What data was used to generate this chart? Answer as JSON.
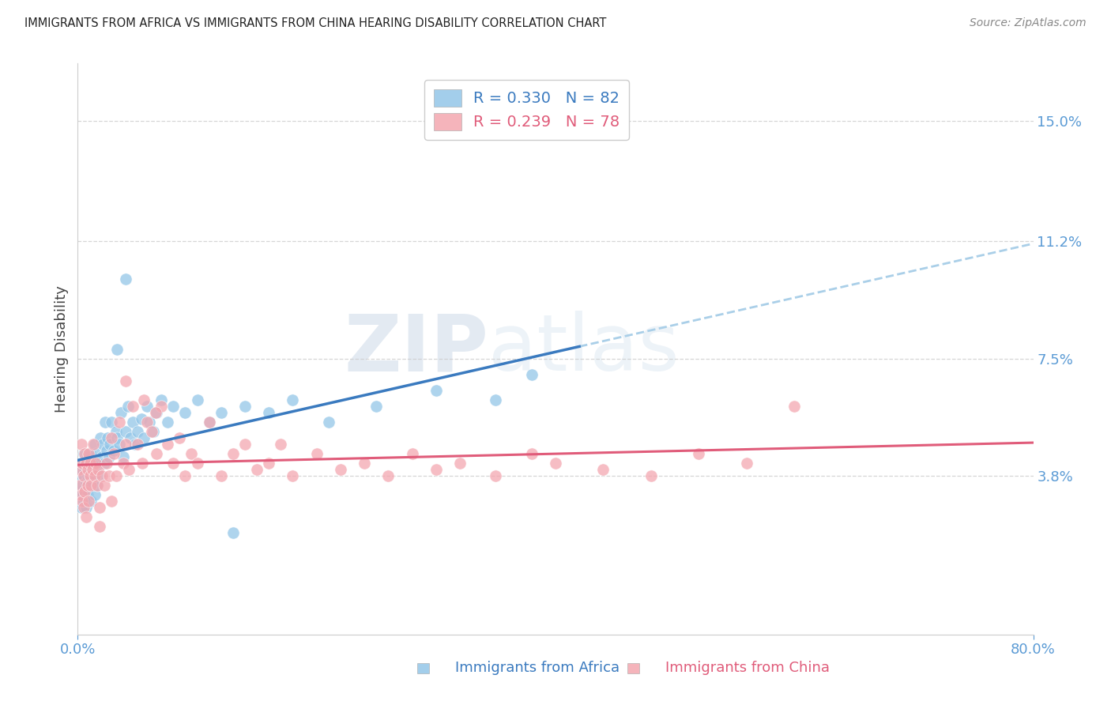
{
  "title": "IMMIGRANTS FROM AFRICA VS IMMIGRANTS FROM CHINA HEARING DISABILITY CORRELATION CHART",
  "source": "Source: ZipAtlas.com",
  "ylabel": "Hearing Disability",
  "ytick_labels": [
    "15.0%",
    "11.2%",
    "7.5%",
    "3.8%"
  ],
  "ytick_values": [
    0.15,
    0.112,
    0.075,
    0.038
  ],
  "xlim": [
    0.0,
    0.8
  ],
  "ylim": [
    -0.012,
    0.168
  ],
  "africa_color": "#93c6e8",
  "china_color": "#f4a7b0",
  "africa_line_color": "#3a7abf",
  "china_line_color": "#e05c7a",
  "africa_dash_color": "#aacfe8",
  "r_africa": 0.33,
  "n_africa": 82,
  "r_china": 0.239,
  "n_china": 78,
  "tick_label_color": "#5b9bd5",
  "background_color": "#ffffff",
  "grid_color": "#cccccc",
  "africa_scatter_x": [
    0.001,
    0.002,
    0.002,
    0.003,
    0.003,
    0.003,
    0.004,
    0.004,
    0.005,
    0.005,
    0.005,
    0.006,
    0.006,
    0.007,
    0.007,
    0.007,
    0.008,
    0.008,
    0.008,
    0.009,
    0.009,
    0.01,
    0.01,
    0.011,
    0.011,
    0.012,
    0.012,
    0.013,
    0.013,
    0.014,
    0.014,
    0.015,
    0.015,
    0.016,
    0.017,
    0.018,
    0.019,
    0.02,
    0.021,
    0.022,
    0.023,
    0.024,
    0.025,
    0.026,
    0.027,
    0.028,
    0.03,
    0.032,
    0.033,
    0.035,
    0.036,
    0.038,
    0.04,
    0.042,
    0.044,
    0.046,
    0.048,
    0.05,
    0.053,
    0.055,
    0.058,
    0.06,
    0.063,
    0.066,
    0.07,
    0.075,
    0.08,
    0.09,
    0.1,
    0.11,
    0.12,
    0.14,
    0.16,
    0.18,
    0.21,
    0.25,
    0.3,
    0.35,
    0.38,
    0.04,
    0.033,
    0.13
  ],
  "africa_scatter_y": [
    0.03,
    0.038,
    0.032,
    0.04,
    0.033,
    0.028,
    0.035,
    0.042,
    0.038,
    0.03,
    0.045,
    0.033,
    0.04,
    0.036,
    0.042,
    0.028,
    0.038,
    0.044,
    0.032,
    0.04,
    0.035,
    0.045,
    0.038,
    0.042,
    0.03,
    0.04,
    0.036,
    0.043,
    0.038,
    0.032,
    0.048,
    0.04,
    0.045,
    0.035,
    0.042,
    0.038,
    0.05,
    0.044,
    0.048,
    0.042,
    0.055,
    0.046,
    0.05,
    0.044,
    0.048,
    0.055,
    0.046,
    0.052,
    0.05,
    0.048,
    0.058,
    0.044,
    0.052,
    0.06,
    0.05,
    0.055,
    0.048,
    0.052,
    0.056,
    0.05,
    0.06,
    0.055,
    0.052,
    0.058,
    0.062,
    0.055,
    0.06,
    0.058,
    0.062,
    0.055,
    0.058,
    0.06,
    0.058,
    0.062,
    0.055,
    0.06,
    0.065,
    0.062,
    0.07,
    0.1,
    0.078,
    0.02
  ],
  "china_scatter_x": [
    0.001,
    0.002,
    0.003,
    0.003,
    0.004,
    0.004,
    0.005,
    0.005,
    0.006,
    0.006,
    0.007,
    0.007,
    0.008,
    0.008,
    0.009,
    0.009,
    0.01,
    0.01,
    0.011,
    0.012,
    0.013,
    0.014,
    0.015,
    0.016,
    0.017,
    0.018,
    0.02,
    0.022,
    0.024,
    0.026,
    0.028,
    0.03,
    0.032,
    0.035,
    0.038,
    0.04,
    0.043,
    0.046,
    0.05,
    0.054,
    0.058,
    0.062,
    0.066,
    0.07,
    0.075,
    0.08,
    0.085,
    0.09,
    0.095,
    0.1,
    0.11,
    0.12,
    0.13,
    0.14,
    0.15,
    0.16,
    0.17,
    0.18,
    0.2,
    0.22,
    0.24,
    0.26,
    0.28,
    0.3,
    0.32,
    0.35,
    0.38,
    0.4,
    0.44,
    0.48,
    0.52,
    0.56,
    0.6,
    0.04,
    0.055,
    0.065,
    0.028,
    0.018
  ],
  "china_scatter_y": [
    0.04,
    0.035,
    0.032,
    0.048,
    0.03,
    0.042,
    0.038,
    0.028,
    0.045,
    0.033,
    0.042,
    0.025,
    0.04,
    0.035,
    0.045,
    0.03,
    0.038,
    0.042,
    0.035,
    0.04,
    0.048,
    0.038,
    0.042,
    0.035,
    0.04,
    0.028,
    0.038,
    0.035,
    0.042,
    0.038,
    0.05,
    0.045,
    0.038,
    0.055,
    0.042,
    0.048,
    0.04,
    0.06,
    0.048,
    0.042,
    0.055,
    0.052,
    0.045,
    0.06,
    0.048,
    0.042,
    0.05,
    0.038,
    0.045,
    0.042,
    0.055,
    0.038,
    0.045,
    0.048,
    0.04,
    0.042,
    0.048,
    0.038,
    0.045,
    0.04,
    0.042,
    0.038,
    0.045,
    0.04,
    0.042,
    0.038,
    0.045,
    0.042,
    0.04,
    0.038,
    0.045,
    0.042,
    0.06,
    0.068,
    0.062,
    0.058,
    0.03,
    0.022
  ]
}
